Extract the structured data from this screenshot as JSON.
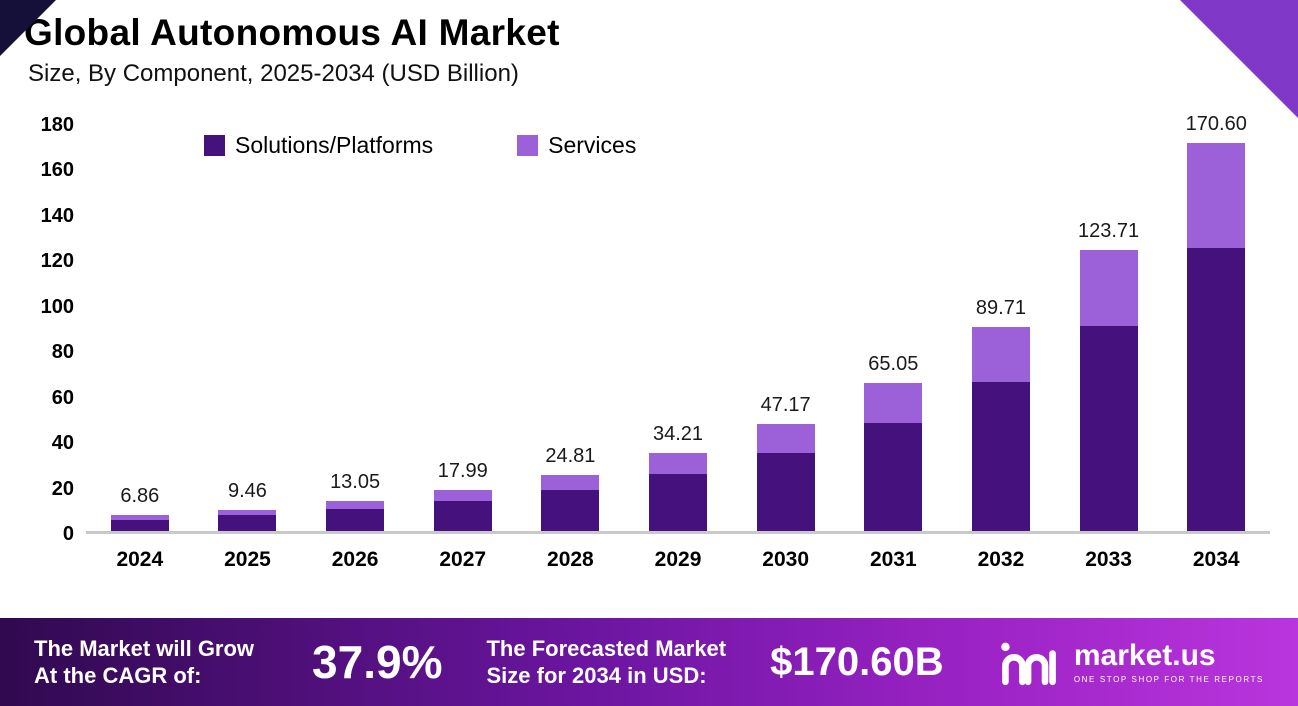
{
  "header": {
    "title": "Global Autonomous AI Market",
    "subtitle": "Size, By Component, 2025-2034 (USD Billion)"
  },
  "chart_data": {
    "type": "bar",
    "stacked": true,
    "title": "Global Autonomous AI Market Size, By Component, 2025-2034 (USD Billion)",
    "categories": [
      "2024",
      "2025",
      "2026",
      "2027",
      "2028",
      "2029",
      "2030",
      "2031",
      "2032",
      "2033",
      "2034"
    ],
    "series": [
      {
        "name": "Solutions/Platforms",
        "color": "#45127d",
        "values": [
          5.0,
          6.9,
          9.52,
          13.13,
          18.1,
          24.95,
          34.4,
          47.45,
          65.4,
          90.2,
          124.4
        ]
      },
      {
        "name": "Services",
        "color": "#9c60d8",
        "values": [
          1.86,
          2.56,
          3.53,
          4.86,
          6.71,
          9.26,
          12.77,
          17.6,
          24.31,
          33.51,
          46.2
        ]
      }
    ],
    "totals": [
      6.86,
      9.46,
      13.05,
      17.99,
      24.81,
      34.21,
      47.17,
      65.05,
      89.71,
      123.71,
      170.6
    ],
    "total_labels": [
      "6.86",
      "9.46",
      "13.05",
      "17.99",
      "24.81",
      "34.21",
      "47.17",
      "65.05",
      "89.71",
      "123.71",
      "170.60"
    ],
    "ylim": [
      0,
      180
    ],
    "yticks": [
      0,
      20,
      40,
      60,
      80,
      100,
      120,
      140,
      160,
      180
    ],
    "legend_position": "top-left",
    "grid": false
  },
  "footer": {
    "cagr_label_line1": "The Market will Grow",
    "cagr_label_line2": "At the CAGR of:",
    "cagr_value": "37.9%",
    "forecast_label_line1": "The Forecasted Market",
    "forecast_label_line2": "Size for 2034 in USD:",
    "forecast_value": "$170.60B",
    "brand_name": "market.us",
    "brand_tagline": "ONE STOP SHOP FOR THE REPORTS"
  },
  "colors": {
    "solutions": "#45127d",
    "services": "#9c60d8",
    "footer_gradient_start": "#30094f",
    "footer_gradient_end": "#b935dd",
    "corner_top_left": "#15103a",
    "corner_top_right": "#8038c8",
    "axis_line": "#c9c9c9"
  }
}
